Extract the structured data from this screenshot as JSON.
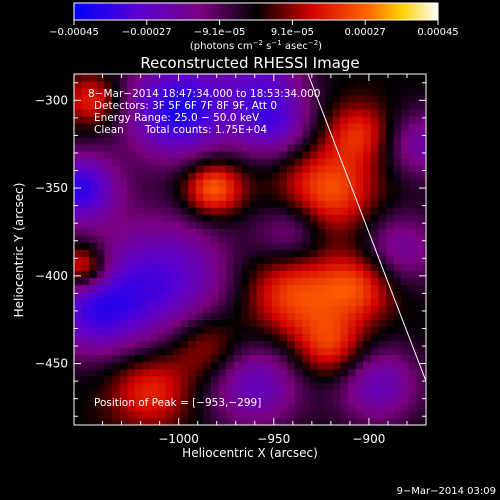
{
  "chart_data": {
    "type": "heatmap",
    "title": "Reconstructed RHESSI Image",
    "xlabel": "Heliocentric X (arcsec)",
    "ylabel": "Heliocentric Y (arcsec)",
    "xlim": [
      -1055,
      -870
    ],
    "ylim": [
      -485,
      -285
    ],
    "xticks": [
      -1000,
      -950,
      -900
    ],
    "xtick_labels": [
      "−1000",
      "−950",
      "−900"
    ],
    "yticks": [
      -300,
      -350,
      -400,
      -450
    ],
    "ytick_labels": [
      "−300",
      "−350",
      "−400",
      "−450"
    ],
    "colorbar": {
      "min": -0.00045,
      "max": 0.00045,
      "tick_labels": [
        "−0.00045",
        "−0.00027",
        "−9.1e−05",
        "9.1e−05",
        "0.00027",
        "0.00045"
      ],
      "unit_main": "(photons cm",
      "unit_sup1": "−2",
      "unit_mid1": " s",
      "unit_sup2": "−1",
      "unit_mid2": " asec",
      "unit_sup3": "−2",
      "unit_end": ")"
    },
    "annotations": {
      "time_range": "8−Mar−2014 18:47:34.000 to 18:53:34.000",
      "detectors": "Detectors: 3F 5F 6F 7F 8F 9F, Att 0",
      "energy": "Energy Range: 25.0 − 50.0 keV",
      "method": "Clean",
      "counts": "Total counts: 1.75E+04",
      "peak": "Position of Peak = [−953,−299]"
    },
    "peak_position": [
      -953,
      -299
    ],
    "limb_line": {
      "start": [
        -932,
        -285
      ],
      "end": [
        -870,
        -460
      ]
    },
    "sources": [
      {
        "x": -1000,
        "y": -305,
        "sigma": 20,
        "value": -0.0004
      },
      {
        "x": -1052,
        "y": -350,
        "sigma": 14,
        "value": -0.00036
      },
      {
        "x": -955,
        "y": -290,
        "sigma": 16,
        "value": -0.00022
      },
      {
        "x": -1008,
        "y": -402,
        "sigma": 26,
        "value": -0.0003
      },
      {
        "x": -950,
        "y": -315,
        "sigma": 14,
        "value": -0.00024
      },
      {
        "x": -940,
        "y": -375,
        "sigma": 14,
        "value": -0.0002
      },
      {
        "x": -1045,
        "y": -420,
        "sigma": 18,
        "value": -0.00028
      },
      {
        "x": -960,
        "y": -462,
        "sigma": 18,
        "value": -0.00025
      },
      {
        "x": -872,
        "y": -325,
        "sigma": 14,
        "value": -0.0002
      },
      {
        "x": -885,
        "y": -385,
        "sigma": 16,
        "value": -0.0002
      },
      {
        "x": -895,
        "y": -462,
        "sigma": 16,
        "value": -0.00024
      },
      {
        "x": -982,
        "y": -350,
        "sigma": 11,
        "value": 0.0003
      },
      {
        "x": -922,
        "y": -352,
        "sigma": 18,
        "value": 0.00026
      },
      {
        "x": -940,
        "y": -410,
        "sigma": 18,
        "value": 0.00024
      },
      {
        "x": -905,
        "y": -405,
        "sigma": 14,
        "value": 0.00023
      },
      {
        "x": -1050,
        "y": -395,
        "sigma": 9,
        "value": 0.0003
      },
      {
        "x": -1015,
        "y": -465,
        "sigma": 15,
        "value": 0.0002
      },
      {
        "x": -1045,
        "y": -300,
        "sigma": 10,
        "value": 0.0002
      },
      {
        "x": -985,
        "y": -440,
        "sigma": 14,
        "value": 0.00018
      },
      {
        "x": -920,
        "y": -440,
        "sigma": 13,
        "value": 0.00021
      },
      {
        "x": -905,
        "y": -318,
        "sigma": 12,
        "value": 0.00018
      }
    ]
  },
  "footer": {
    "date": "9−Mar−2014 03:09"
  }
}
